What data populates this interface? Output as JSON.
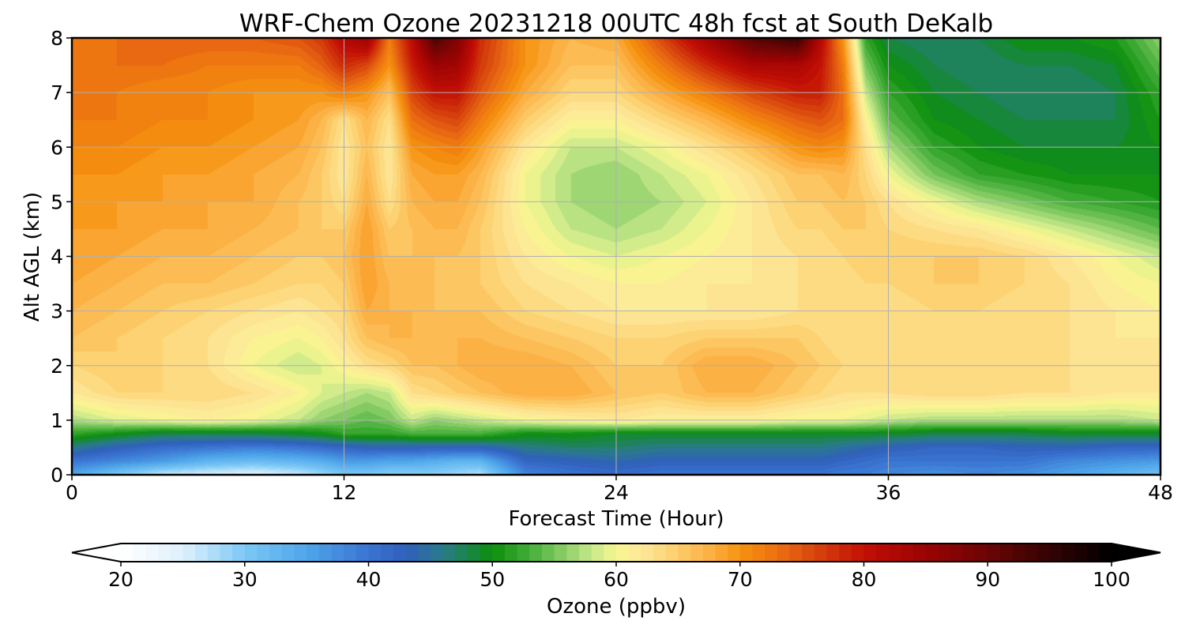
{
  "chart_data": {
    "type": "heatmap",
    "title": "WRF-Chem Ozone  20231218 00UTC 48h fcst at South DeKalb",
    "xlabel": "Forecast Time (Hour)",
    "ylabel": "Alt AGL (km)",
    "xlim": [
      0,
      48
    ],
    "ylim": [
      0,
      8
    ],
    "xticks": [
      "0",
      "12",
      "24",
      "36",
      "48"
    ],
    "yticks": [
      "0",
      "1",
      "2",
      "3",
      "4",
      "5",
      "6",
      "7",
      "8"
    ],
    "grid": true,
    "x": [
      0,
      2,
      4,
      6,
      8,
      10,
      11,
      12,
      13,
      14,
      15,
      16,
      17,
      18,
      20,
      22,
      24,
      26,
      28,
      30,
      32,
      33,
      34,
      35,
      36,
      38,
      40,
      42,
      44,
      46,
      48
    ],
    "y": [
      0,
      0.25,
      0.5,
      0.75,
      1,
      1.5,
      2,
      2.5,
      3,
      3.5,
      4,
      4.5,
      5,
      5.5,
      6,
      6.5,
      7,
      7.5,
      8
    ],
    "z": [
      [
        35,
        30,
        26,
        25,
        24,
        26,
        28,
        30,
        30,
        29,
        29,
        29,
        28,
        27,
        38,
        40,
        41,
        40,
        40,
        40,
        40,
        40,
        39,
        39,
        38,
        37,
        38,
        37,
        35,
        33,
        31
      ],
      [
        40,
        38,
        36,
        33,
        32,
        33,
        34,
        36,
        36,
        35,
        35,
        34,
        33,
        33,
        42,
        43,
        44,
        43,
        43,
        43,
        43,
        43,
        42,
        41,
        40,
        40,
        40,
        40,
        38,
        37,
        36
      ],
      [
        46,
        43,
        41,
        40,
        39,
        40,
        41,
        42,
        43,
        43,
        43,
        43,
        43,
        43,
        46,
        47,
        47,
        46,
        46,
        46,
        46,
        46,
        45,
        44,
        43,
        42,
        42,
        43,
        43,
        42,
        42
      ],
      [
        52,
        50,
        48,
        48,
        48,
        49,
        50,
        52,
        52,
        52,
        53,
        53,
        53,
        53,
        50,
        50,
        49,
        49,
        49,
        49,
        49,
        49,
        49,
        49,
        49,
        48,
        48,
        48,
        49,
        49,
        49
      ],
      [
        57,
        59,
        60,
        61,
        60,
        58,
        56,
        55,
        54,
        55,
        58,
        56,
        57,
        58,
        60,
        61,
        62,
        61,
        61,
        61,
        60,
        60,
        60,
        59,
        58,
        57,
        57,
        57,
        57,
        57,
        58
      ],
      [
        62,
        64,
        64,
        64,
        63,
        61,
        59,
        58,
        57,
        58,
        63,
        64,
        65,
        66,
        68,
        68,
        66,
        65,
        67,
        67,
        65,
        64,
        63,
        63,
        63,
        64,
        64,
        63,
        63,
        62,
        62
      ],
      [
        64,
        65,
        64,
        63,
        60,
        58,
        59,
        61,
        63,
        64,
        66,
        66,
        67,
        68,
        68,
        67,
        65,
        65,
        68,
        68,
        66,
        65,
        64,
        64,
        63,
        63,
        63,
        63,
        63,
        63,
        63
      ],
      [
        66,
        65,
        64,
        63,
        61,
        60,
        61,
        63,
        66,
        67,
        67,
        67,
        67,
        67,
        66,
        65,
        64,
        64,
        65,
        65,
        65,
        64,
        63,
        63,
        63,
        63,
        63,
        63,
        63,
        62,
        62
      ],
      [
        67,
        66,
        65,
        64,
        63,
        62,
        63,
        64,
        68,
        67,
        67,
        66,
        66,
        66,
        64,
        63,
        62,
        62,
        62,
        62,
        63,
        63,
        63,
        63,
        63,
        64,
        64,
        63,
        63,
        62,
        61
      ],
      [
        68,
        67,
        66,
        66,
        65,
        64,
        64,
        65,
        69,
        67,
        66,
        66,
        65,
        65,
        63,
        62,
        61,
        61,
        62,
        62,
        63,
        63,
        63,
        64,
        64,
        65,
        65,
        64,
        63,
        61,
        60
      ],
      [
        69,
        68,
        67,
        67,
        66,
        65,
        65,
        66,
        69,
        66,
        66,
        66,
        66,
        65,
        62,
        60,
        59,
        60,
        61,
        62,
        63,
        63,
        64,
        65,
        65,
        65,
        65,
        64,
        62,
        60,
        58
      ],
      [
        69,
        69,
        68,
        68,
        67,
        66,
        65,
        65,
        69,
        65,
        66,
        67,
        67,
        65,
        61,
        58,
        57,
        58,
        60,
        62,
        64,
        64,
        65,
        65,
        64,
        63,
        62,
        60,
        58,
        56,
        54
      ],
      [
        70,
        69,
        69,
        68,
        68,
        66,
        65,
        63,
        68,
        63,
        67,
        68,
        68,
        66,
        60,
        57,
        56,
        57,
        59,
        62,
        65,
        65,
        66,
        65,
        63,
        60,
        57,
        55,
        53,
        52,
        51
      ],
      [
        70,
        70,
        69,
        69,
        68,
        67,
        65,
        62,
        67,
        62,
        68,
        69,
        69,
        67,
        60,
        57,
        56,
        58,
        60,
        63,
        66,
        66,
        67,
        64,
        60,
        55,
        52,
        51,
        50,
        50,
        50
      ],
      [
        71,
        71,
        70,
        70,
        69,
        68,
        66,
        62,
        66,
        62,
        70,
        71,
        72,
        69,
        62,
        58,
        58,
        60,
        63,
        66,
        70,
        71,
        70,
        63,
        57,
        52,
        50,
        49,
        49,
        49,
        50
      ],
      [
        72,
        72,
        71,
        71,
        70,
        69,
        67,
        63,
        67,
        63,
        73,
        75,
        76,
        72,
        65,
        61,
        61,
        64,
        67,
        71,
        74,
        75,
        73,
        61,
        54,
        50,
        49,
        48,
        48,
        48,
        51
      ],
      [
        73,
        72,
        71,
        71,
        70,
        70,
        70,
        72,
        70,
        66,
        76,
        80,
        80,
        75,
        68,
        64,
        64,
        68,
        72,
        76,
        79,
        79,
        73,
        58,
        52,
        49,
        48,
        47,
        47,
        48,
        52
      ],
      [
        73,
        73,
        73,
        72,
        72,
        72,
        74,
        78,
        76,
        70,
        79,
        85,
        84,
        77,
        70,
        66,
        66,
        72,
        78,
        83,
        83,
        80,
        72,
        55,
        50,
        48,
        47,
        48,
        48,
        49,
        54
      ],
      [
        72,
        73,
        74,
        74,
        74,
        75,
        77,
        82,
        85,
        72,
        81,
        93,
        88,
        78,
        70,
        67,
        68,
        76,
        84,
        92,
        95,
        82,
        70,
        52,
        48,
        47,
        48,
        50,
        50,
        51,
        56
      ]
    ],
    "colorbar": {
      "label": "Ozone  (ppbv)",
      "min": 20,
      "max": 100,
      "step": 1,
      "ticks": [
        "20",
        "30",
        "40",
        "50",
        "60",
        "70",
        "80",
        "90",
        "100"
      ],
      "extend": "both"
    },
    "colormap": [
      {
        "v": 20,
        "c": "#ffffff"
      },
      {
        "v": 25,
        "c": "#dff1fc"
      },
      {
        "v": 30,
        "c": "#7cc8f5"
      },
      {
        "v": 35,
        "c": "#4ea6ea"
      },
      {
        "v": 40,
        "c": "#3a74d2"
      },
      {
        "v": 43,
        "c": "#2f5fbb"
      },
      {
        "v": 46,
        "c": "#2a7a8a"
      },
      {
        "v": 50,
        "c": "#0b8f0b"
      },
      {
        "v": 53,
        "c": "#45ad3a"
      },
      {
        "v": 56,
        "c": "#8fd06b"
      },
      {
        "v": 58,
        "c": "#c7e889"
      },
      {
        "v": 60,
        "c": "#f7f78f"
      },
      {
        "v": 62,
        "c": "#fde89a"
      },
      {
        "v": 65,
        "c": "#fccd6a"
      },
      {
        "v": 68,
        "c": "#fbab3c"
      },
      {
        "v": 70,
        "c": "#f6930e"
      },
      {
        "v": 73,
        "c": "#eb7012"
      },
      {
        "v": 76,
        "c": "#d8460d"
      },
      {
        "v": 80,
        "c": "#c20f05"
      },
      {
        "v": 85,
        "c": "#9a0303"
      },
      {
        "v": 90,
        "c": "#6a0505"
      },
      {
        "v": 95,
        "c": "#330303"
      },
      {
        "v": 100,
        "c": "#000000"
      }
    ]
  }
}
